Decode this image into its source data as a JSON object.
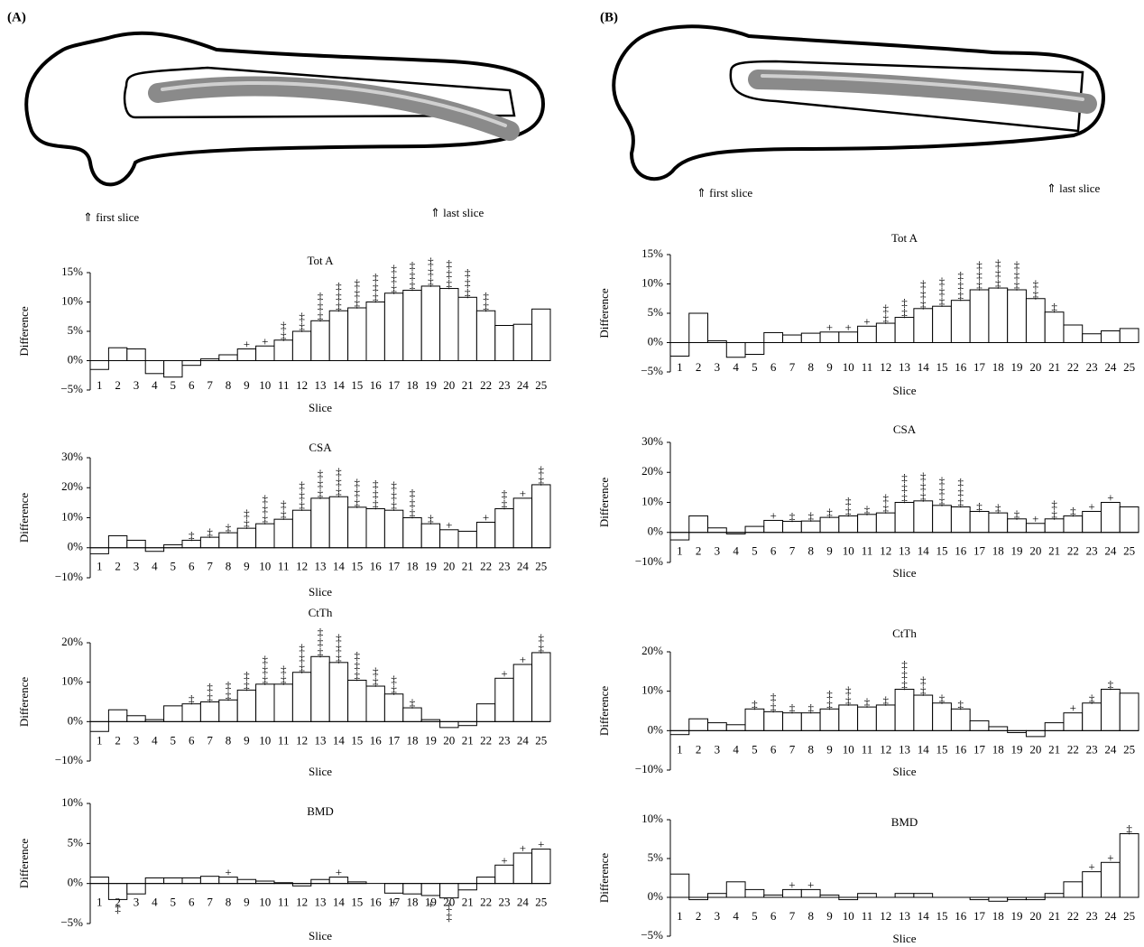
{
  "panels": [
    {
      "label": "(A)",
      "first_slice": "⇑ first slice",
      "last_slice": "⇑ last slice"
    },
    {
      "label": "(B)",
      "first_slice": "⇑ first slice",
      "last_slice": "⇑ last slice"
    }
  ],
  "chart_data": [
    {
      "type": "bar",
      "title": "Tot A",
      "ylabel": "Difference",
      "xlabel": "Slice",
      "color": "#ffffff",
      "categories": [
        "1",
        "2",
        "3",
        "4",
        "5",
        "6",
        "7",
        "8",
        "9",
        "10",
        "11",
        "12",
        "13",
        "14",
        "15",
        "16",
        "17",
        "18",
        "19",
        "20",
        "21",
        "22",
        "23",
        "24",
        "25"
      ],
      "values": [
        -1.5,
        2.2,
        2.0,
        -2.2,
        -2.8,
        -0.8,
        0.3,
        1.0,
        2.0,
        2.5,
        3.5,
        5.0,
        6.8,
        8.5,
        9.0,
        10.0,
        11.5,
        12.0,
        12.7,
        12.3,
        10.8,
        8.5,
        6.0,
        6.2,
        8.8
      ],
      "annotations": [
        null,
        null,
        null,
        null,
        null,
        null,
        null,
        null,
        "+",
        "+",
        "‡‡",
        "‡‡",
        "‡‡‡",
        "‡‡‡",
        "‡‡‡",
        "‡‡‡",
        "‡‡‡",
        "‡‡‡",
        "‡‡‡",
        "‡‡‡",
        "‡‡‡",
        "‡‡",
        null,
        null,
        null
      ],
      "ylim": [
        -5,
        15
      ],
      "yticks": [
        {
          "value": -5,
          "label": "−5%"
        },
        {
          "value": 0,
          "label": "0%"
        },
        {
          "value": 5,
          "label": "5%"
        },
        {
          "value": 10,
          "label": "10%"
        },
        {
          "value": 15,
          "label": "15%"
        }
      ]
    },
    {
      "type": "bar",
      "title": "CSA",
      "ylabel": "Difference",
      "xlabel": "Slice",
      "color": "#ffffff",
      "categories": [
        "1",
        "2",
        "3",
        "4",
        "5",
        "6",
        "7",
        "8",
        "9",
        "10",
        "11",
        "12",
        "13",
        "14",
        "15",
        "16",
        "17",
        "18",
        "19",
        "20",
        "21",
        "22",
        "23",
        "24",
        "25"
      ],
      "values": [
        -2,
        4,
        2.5,
        -1.2,
        1,
        2.5,
        3.5,
        5,
        6.5,
        8,
        9.5,
        12.5,
        16.5,
        17,
        13.5,
        13,
        12.5,
        10,
        8,
        6,
        5.5,
        8.5,
        13,
        16.5,
        21
      ],
      "annotations": [
        null,
        null,
        null,
        null,
        null,
        "‡",
        "‡",
        "‡",
        "‡‡",
        "‡‡‡",
        "‡‡",
        "‡‡‡",
        "‡‡‡",
        "‡‡‡",
        "‡‡‡",
        "‡‡‡",
        "‡‡‡",
        "‡‡‡",
        "‡",
        "+",
        null,
        "+",
        "‡‡",
        "+",
        "‡‡"
      ],
      "ylim": [
        -10,
        30
      ],
      "yticks": [
        {
          "value": -10,
          "label": "−10%"
        },
        {
          "value": 0,
          "label": "0%"
        },
        {
          "value": 10,
          "label": "10%"
        },
        {
          "value": 20,
          "label": "20%"
        },
        {
          "value": 30,
          "label": "30%"
        }
      ]
    },
    {
      "type": "bar",
      "title": "CtTh",
      "ylabel": "Difference",
      "xlabel": "Slice",
      "color": "#ffffff",
      "categories": [
        "1",
        "2",
        "3",
        "4",
        "5",
        "6",
        "7",
        "8",
        "9",
        "10",
        "11",
        "12",
        "13",
        "14",
        "15",
        "16",
        "17",
        "18",
        "19",
        "20",
        "21",
        "22",
        "23",
        "24",
        "25"
      ],
      "values": [
        -2.5,
        3,
        1.5,
        0.5,
        4,
        4.5,
        5,
        5.5,
        8,
        9.5,
        9.5,
        12.5,
        16.5,
        15,
        10.5,
        9,
        7,
        3.5,
        0.5,
        -1.5,
        -1,
        4.5,
        11,
        14.5,
        17.5
      ],
      "annotations": [
        null,
        null,
        null,
        null,
        null,
        "‡",
        "‡‡",
        "‡‡",
        "‡‡",
        "‡‡‡",
        "‡‡",
        "‡‡‡",
        "‡‡‡",
        "‡‡‡",
        "‡‡‡",
        "‡‡",
        "‡‡",
        "‡",
        null,
        null,
        null,
        null,
        "+",
        "+",
        "‡‡"
      ],
      "ylim": [
        -10,
        20
      ],
      "yticks": [
        {
          "value": -10,
          "label": "−10%"
        },
        {
          "value": 0,
          "label": "0%"
        },
        {
          "value": 10,
          "label": "10%"
        },
        {
          "value": 20,
          "label": "20%"
        }
      ]
    },
    {
      "type": "bar",
      "title": "BMD",
      "ylabel": "Difference",
      "xlabel": "Slice",
      "color": "#ffffff",
      "categories": [
        "1",
        "2",
        "3",
        "4",
        "5",
        "6",
        "7",
        "8",
        "9",
        "10",
        "11",
        "12",
        "13",
        "14",
        "15",
        "16",
        "17",
        "18",
        "19",
        "20",
        "21",
        "22",
        "23",
        "24",
        "25"
      ],
      "values": [
        0.8,
        -2,
        -1.3,
        0.7,
        0.7,
        0.7,
        0.9,
        0.8,
        0.5,
        0.3,
        0.1,
        -0.3,
        0.5,
        0.8,
        0.2,
        0,
        -1.2,
        -1.3,
        -1.5,
        -1.8,
        -0.8,
        0.8,
        2.3,
        3.8,
        4.3
      ],
      "annotations": [
        null,
        "‡",
        null,
        null,
        null,
        null,
        null,
        "+",
        null,
        null,
        null,
        null,
        null,
        "+",
        null,
        null,
        "+",
        null,
        "+",
        "‡‡",
        null,
        null,
        "+",
        "+",
        "+"
      ],
      "ylim": [
        -5,
        10
      ],
      "yticks": [
        {
          "value": -5,
          "label": "−5%"
        },
        {
          "value": 0,
          "label": "0%"
        },
        {
          "value": 5,
          "label": "5%"
        },
        {
          "value": 10,
          "label": "10%"
        }
      ]
    },
    {
      "type": "bar",
      "title": "Tot A",
      "ylabel": "Difference",
      "xlabel": "Slice",
      "color": "#ffffff",
      "categories": [
        "1",
        "2",
        "3",
        "4",
        "5",
        "6",
        "7",
        "8",
        "9",
        "10",
        "11",
        "12",
        "13",
        "14",
        "15",
        "16",
        "17",
        "18",
        "19",
        "20",
        "21",
        "22",
        "23",
        "24",
        "25"
      ],
      "values": [
        -2.3,
        5,
        0.3,
        -2.5,
        -2,
        1.7,
        1.3,
        1.6,
        1.8,
        1.8,
        2.8,
        3.3,
        4.3,
        5.8,
        6.2,
        7.2,
        9,
        9.3,
        9,
        7.5,
        5.2,
        3,
        1.5,
        2,
        2.4
      ],
      "annotations": [
        null,
        null,
        null,
        null,
        null,
        null,
        null,
        null,
        "+",
        "+",
        "+",
        "‡‡",
        "‡‡",
        "‡‡‡",
        "‡‡‡",
        "‡‡‡",
        "‡‡‡",
        "‡‡‡",
        "‡‡‡",
        "‡‡",
        "‡",
        null,
        null,
        null,
        null
      ],
      "ylim": [
        -5,
        15
      ],
      "yticks": [
        {
          "value": -5,
          "label": "−5%"
        },
        {
          "value": 0,
          "label": "0%"
        },
        {
          "value": 5,
          "label": "5%"
        },
        {
          "value": 10,
          "label": "10%"
        },
        {
          "value": 15,
          "label": "15%"
        }
      ]
    },
    {
      "type": "bar",
      "title": "CSA",
      "ylabel": "Difference",
      "xlabel": "Slice",
      "color": "#ffffff",
      "categories": [
        "1",
        "2",
        "3",
        "4",
        "5",
        "6",
        "7",
        "8",
        "9",
        "10",
        "11",
        "12",
        "13",
        "14",
        "15",
        "16",
        "17",
        "18",
        "19",
        "20",
        "21",
        "22",
        "23",
        "24",
        "25"
      ],
      "values": [
        -2.5,
        5.5,
        1.5,
        -0.5,
        2,
        4,
        3.7,
        3.8,
        5,
        5.5,
        6,
        6.5,
        10,
        10.5,
        9,
        8.5,
        7,
        6.5,
        4.5,
        3,
        4.5,
        5.5,
        7,
        10,
        8.5
      ],
      "annotations": [
        null,
        null,
        null,
        null,
        null,
        "+",
        "‡",
        "‡",
        "‡",
        "‡‡",
        "‡",
        "‡‡",
        "‡‡‡",
        "‡‡‡",
        "‡‡‡",
        "‡‡‡",
        "‡",
        "‡",
        "‡",
        "+",
        "‡‡",
        "‡",
        "+",
        "+",
        null
      ],
      "ylim": [
        -10,
        30
      ],
      "yticks": [
        {
          "value": -10,
          "label": "−10%"
        },
        {
          "value": 0,
          "label": "0%"
        },
        {
          "value": 10,
          "label": "10%"
        },
        {
          "value": 20,
          "label": "20%"
        },
        {
          "value": 30,
          "label": "30%"
        }
      ]
    },
    {
      "type": "bar",
      "title": "CtTh",
      "ylabel": "Difference",
      "xlabel": "Slice",
      "color": "#ffffff",
      "categories": [
        "1",
        "2",
        "3",
        "4",
        "5",
        "6",
        "7",
        "8",
        "9",
        "10",
        "11",
        "12",
        "13",
        "14",
        "15",
        "16",
        "17",
        "18",
        "19",
        "20",
        "21",
        "22",
        "23",
        "24",
        "25"
      ],
      "values": [
        -1,
        3,
        2,
        1.5,
        5.5,
        4.8,
        4.5,
        4.5,
        5.5,
        6.5,
        6,
        6.5,
        10.5,
        9,
        7,
        5.5,
        2.5,
        1,
        -0.5,
        -1.5,
        2,
        4.5,
        7,
        10.5,
        9.5
      ],
      "annotations": [
        null,
        null,
        null,
        null,
        "‡",
        "‡‡",
        "‡",
        "‡",
        "‡‡",
        "‡‡",
        "‡",
        "‡",
        "‡‡‡",
        "‡‡",
        "‡",
        "‡",
        null,
        null,
        null,
        null,
        null,
        "+",
        "‡",
        "‡",
        null
      ],
      "ylim": [
        -10,
        20
      ],
      "yticks": [
        {
          "value": -10,
          "label": "−10%"
        },
        {
          "value": 0,
          "label": "0%"
        },
        {
          "value": 10,
          "label": "10%"
        },
        {
          "value": 20,
          "label": "20%"
        }
      ]
    },
    {
      "type": "bar",
      "title": "BMD",
      "ylabel": "Difference",
      "xlabel": "Slice",
      "color": "#ffffff",
      "categories": [
        "1",
        "2",
        "3",
        "4",
        "5",
        "6",
        "7",
        "8",
        "9",
        "10",
        "11",
        "12",
        "13",
        "14",
        "15",
        "16",
        "17",
        "18",
        "19",
        "20",
        "21",
        "22",
        "23",
        "24",
        "25"
      ],
      "values": [
        3,
        -0.3,
        0.5,
        2,
        1,
        0.3,
        1,
        1,
        0.3,
        -0.3,
        0.5,
        0,
        0.5,
        0.5,
        0,
        0,
        -0.3,
        -0.5,
        -0.3,
        -0.3,
        0.5,
        2,
        3.3,
        4.5,
        8.2
      ],
      "annotations": [
        null,
        null,
        null,
        null,
        null,
        null,
        "+",
        "+",
        null,
        null,
        null,
        null,
        null,
        null,
        null,
        null,
        null,
        null,
        null,
        null,
        null,
        null,
        "+",
        "+",
        "‡"
      ],
      "ylim": [
        -5,
        10
      ],
      "yticks": [
        {
          "value": -5,
          "label": "−5%"
        },
        {
          "value": 0,
          "label": "0%"
        },
        {
          "value": 5,
          "label": "5%"
        },
        {
          "value": 10,
          "label": "10%"
        }
      ]
    }
  ]
}
